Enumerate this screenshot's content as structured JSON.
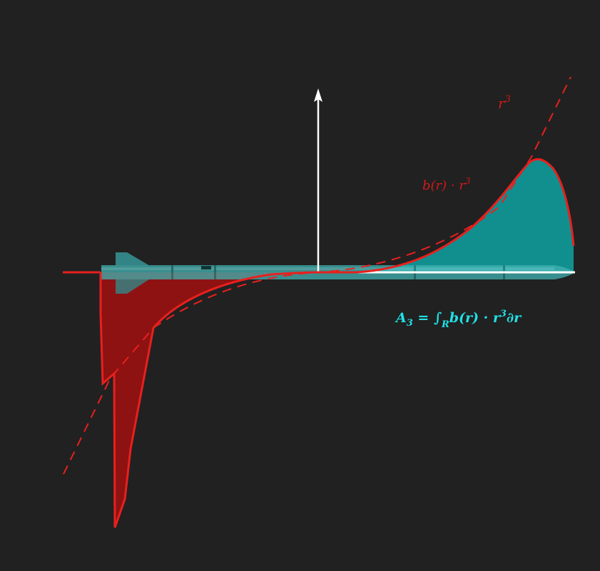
{
  "colors": {
    "background": "#212121",
    "red": "#e8201e",
    "red_fill": "#8e1212",
    "teal_fill": "#118f8f",
    "rocket": "#40b3b3",
    "axis": "#ffffff",
    "label_red": "#d21919",
    "label_cyan": "#22e0e6"
  },
  "labels": {
    "r3": {
      "base": "r",
      "sup": "3"
    },
    "product": {
      "main": "b(r) · r",
      "sup": "3"
    },
    "formula": {
      "lhs": "A",
      "lhs_sub": "3",
      "eq": " = ∫",
      "int_sub": "R",
      "body": "b(r) · r",
      "sup": "3",
      "tail": "∂r"
    }
  }
}
